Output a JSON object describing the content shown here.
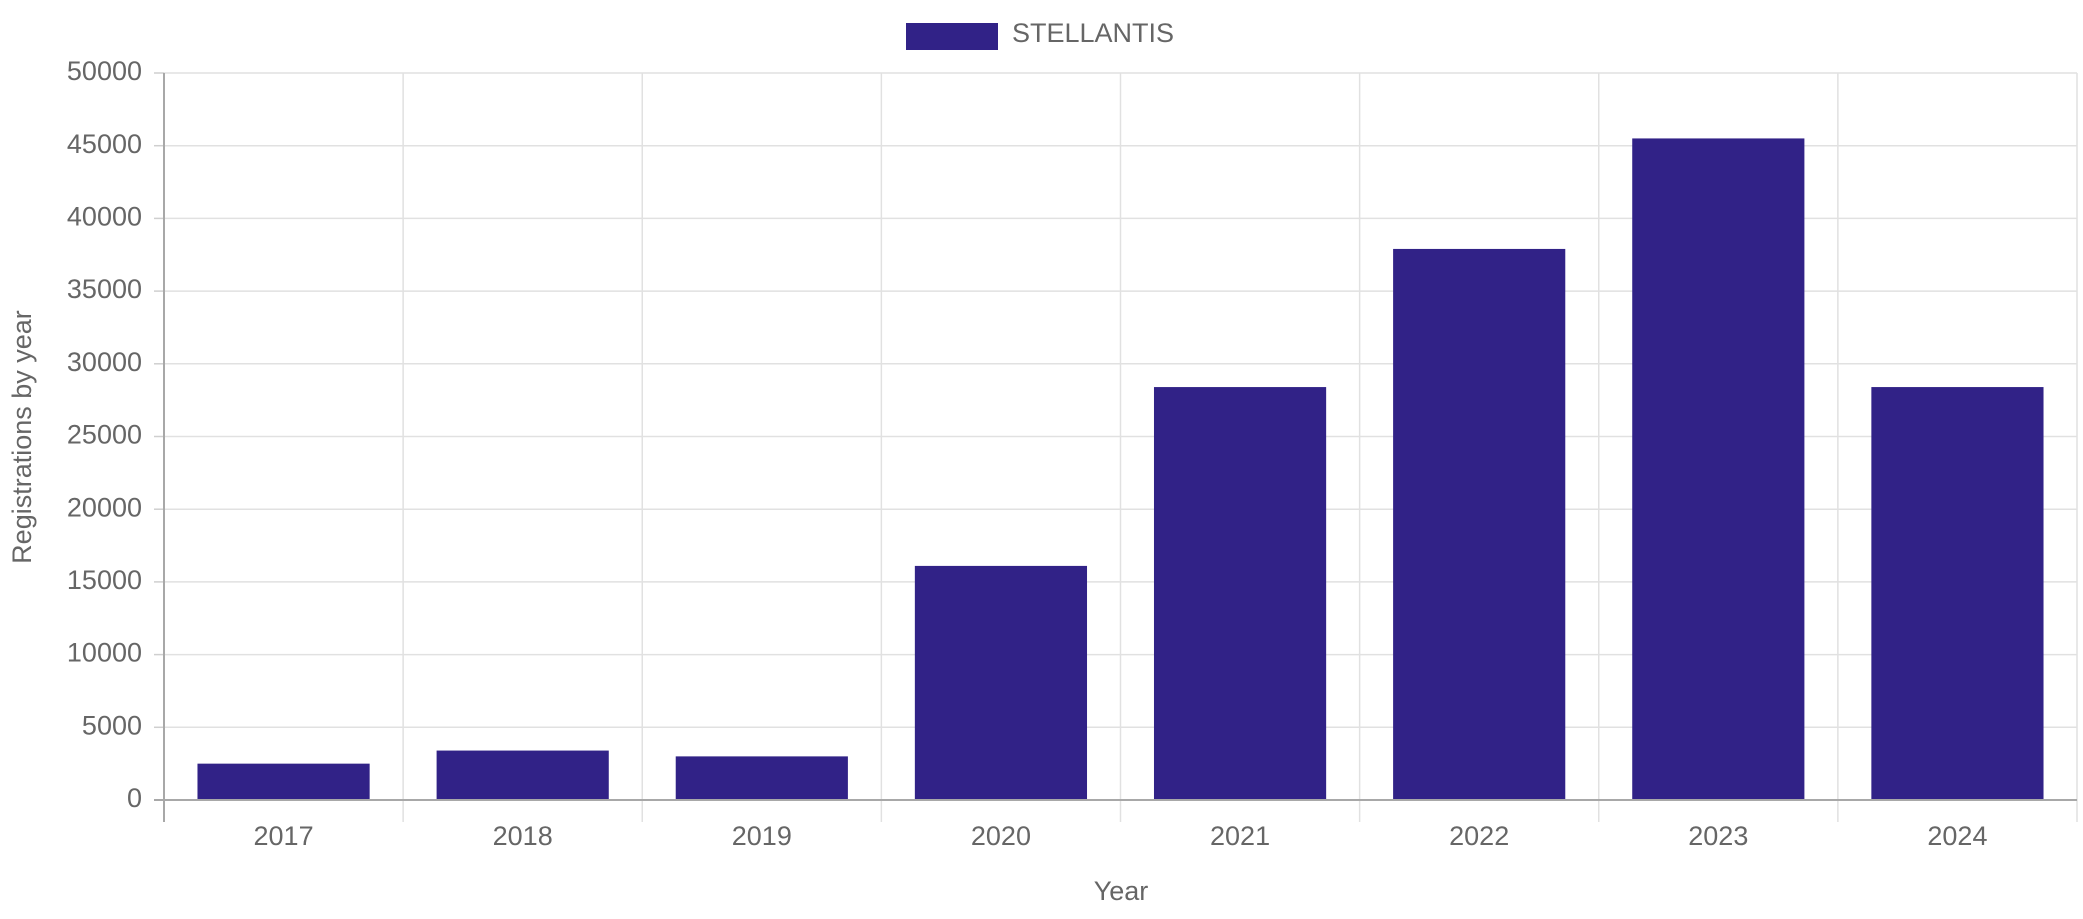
{
  "chart_data": {
    "type": "bar",
    "categories": [
      "2017",
      "2018",
      "2019",
      "2020",
      "2021",
      "2022",
      "2023",
      "2024"
    ],
    "series": [
      {
        "name": "STELLANTIS",
        "color": "#312287",
        "values": [
          2500,
          3400,
          3000,
          16100,
          28400,
          37900,
          45500,
          28400
        ]
      }
    ],
    "xlabel": "Year",
    "ylabel": "Registrations by year",
    "ylim": [
      0,
      50000
    ],
    "yticks": [
      "0",
      "5000",
      "10000",
      "15000",
      "20000",
      "25000",
      "30000",
      "35000",
      "40000",
      "45000",
      "50000"
    ],
    "grid": true,
    "legend_position": "top-center"
  }
}
